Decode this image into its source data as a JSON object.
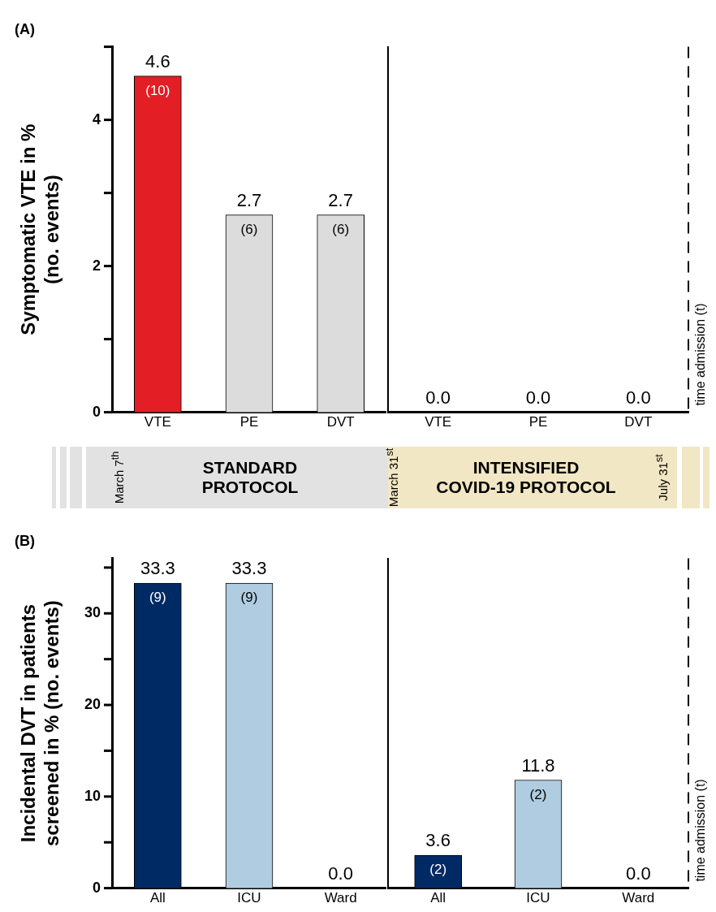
{
  "chart_data": [
    {
      "type": "bar",
      "title": "(A)",
      "ylabel": "Symptomatic VTE in %\n(no. events)",
      "categories": [
        "VTE",
        "PE",
        "DVT"
      ],
      "values": [
        4.6,
        2.7,
        2.7
      ],
      "colors": [
        "#e31e24",
        "#dcdcdc",
        "#dcdcdc"
      ],
      "value_labels": [
        "4.6",
        "2.7",
        "2.7"
      ],
      "ylim": [
        0,
        5
      ],
      "yticks": [
        0,
        {
          "value": 1,
          "label": null
        },
        2,
        {
          "value": 3,
          "label": null
        },
        4,
        {
          "value": 5,
          "label": null
        }
      ],
      "annotations": [
        {
          "text": "(10)",
          "x": "VTE",
          "y": 4.6
        },
        {
          "text": "(6)",
          "x": "PE",
          "y": 2.7
        },
        {
          "text": "(6)",
          "x": "DVT",
          "y": 2.7
        }
      ],
      "grid": false,
      "legend": false
    },
    {
      "type": "bar",
      "categories": [
        "VTE",
        "PE",
        "DVT"
      ],
      "values": [
        0,
        0,
        0
      ],
      "colors": [
        "#e31e24",
        "#dcdcdc",
        "#dcdcdc"
      ],
      "value_labels": [
        "0.0",
        "0.0",
        "0.0"
      ],
      "ylim": [
        0,
        5
      ],
      "tick_labels": "x",
      "line_style": "dashed",
      "annotations": [
        "time admission (t)"
      ],
      "grid": false,
      "legend": false
    },
    {
      "type": "other",
      "annotations": [
        "March 7$^{th}$",
        "STANDARD\nPROTOCOL",
        "March 31$^{st}$",
        "INTENSIFIED\nCOVID-19 PROTOCOL",
        "July 31$^{st}$"
      ]
    },
    {
      "type": "bar",
      "title": "(B)",
      "ylabel": "Incidental DVT in patients\nscreened in % (no. events)",
      "categories": [
        "All",
        "ICU",
        "Ward"
      ],
      "values": [
        33.3,
        33.3,
        0
      ],
      "colors": [
        "#002a64",
        "#b0cce0",
        "#b0cce0"
      ],
      "value_labels": [
        "33.3",
        "33.3",
        "0.0"
      ],
      "ylim": [
        0,
        36
      ],
      "yticks": [
        0,
        {
          "value": 5,
          "label": null
        },
        10,
        {
          "value": 15,
          "label": null
        },
        20,
        {
          "value": 25,
          "label": null
        },
        30,
        {
          "value": 35,
          "label": null
        }
      ],
      "annotations": [
        {
          "text": "(9)",
          "x": "All",
          "y": 33.3
        },
        {
          "text": "(9)",
          "x": "ICU",
          "y": 33.3
        }
      ],
      "grid": false,
      "legend": false
    },
    {
      "type": "bar",
      "categories": [
        "All",
        "ICU",
        "Ward"
      ],
      "values": [
        3.6,
        11.8,
        0
      ],
      "colors": [
        "#002a64",
        "#b0cce0",
        "#b0cce0"
      ],
      "value_labels": [
        "3.6",
        "11.8",
        "0.0"
      ],
      "ylim": [
        0,
        36
      ],
      "tick_labels": "x",
      "line_style": "dashed",
      "annotations": [
        {
          "text": "(2)",
          "x": "All",
          "y": 3.6
        },
        {
          "text": "(2)",
          "x": "ICU",
          "y": 11.8
        },
        "time admission (t)"
      ],
      "grid": false,
      "legend": false
    }
  ]
}
